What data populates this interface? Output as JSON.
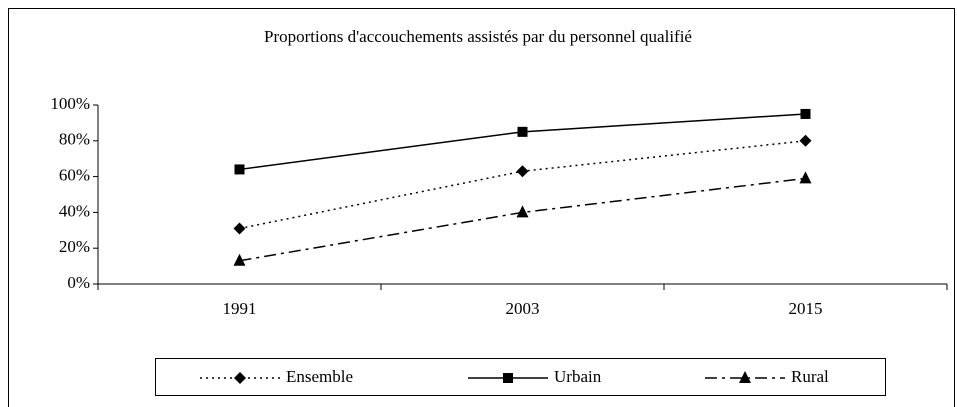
{
  "chart_data": {
    "type": "line",
    "title": "Proportions d'accouchements assistés par du personnel qualifié",
    "categories": [
      "1991",
      "2003",
      "2015"
    ],
    "series": [
      {
        "name": "Ensemble",
        "color": "#000000",
        "dash": "dotted",
        "marker": "diamond",
        "values": [
          31,
          63,
          80
        ]
      },
      {
        "name": "Urbain",
        "color": "#000000",
        "dash": "solid",
        "marker": "square",
        "values": [
          64,
          85,
          95
        ]
      },
      {
        "name": "Rural",
        "color": "#000000",
        "dash": "dashdot",
        "marker": "triangle",
        "values": [
          13,
          40,
          59
        ]
      }
    ],
    "ylim": [
      0,
      100
    ],
    "yticks": [
      {
        "value": 0,
        "label": "0%"
      },
      {
        "value": 20,
        "label": "20%"
      },
      {
        "value": 40,
        "label": "40%"
      },
      {
        "value": 60,
        "label": "60%"
      },
      {
        "value": 80,
        "label": "80%"
      },
      {
        "value": 100,
        "label": "100%"
      }
    ],
    "grid": false,
    "legend": "bottom"
  }
}
